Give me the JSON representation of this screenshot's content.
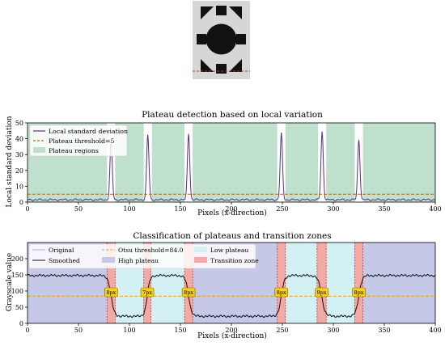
{
  "thumbnail": {
    "description_icon": "binary-pattern-icon"
  },
  "chart_data": [
    {
      "type": "line",
      "title": "Plateau detection based on local variation",
      "xlabel": "Pixels (x-direction)",
      "ylabel": "Local standard deviation",
      "xlim": [
        0,
        400
      ],
      "ylim": [
        0,
        50
      ],
      "xticks": [
        "0",
        "50",
        "100",
        "150",
        "200",
        "250",
        "300",
        "350",
        "400"
      ],
      "yticks": [
        "0",
        "10",
        "20",
        "30",
        "40",
        "50"
      ],
      "legend": {
        "position": "top-left",
        "items": [
          "Local standard deviation",
          "Plateau threshold=5",
          "Plateau regions"
        ]
      },
      "threshold": 5,
      "peaks": [
        {
          "x": 82,
          "y": 37
        },
        {
          "x": 118,
          "y": 41
        },
        {
          "x": 158,
          "y": 42
        },
        {
          "x": 249,
          "y": 42
        },
        {
          "x": 289,
          "y": 43
        },
        {
          "x": 325,
          "y": 38
        }
      ],
      "baseline": 1.5,
      "plateau_regions": [
        [
          0,
          78
        ],
        [
          86,
          114
        ],
        [
          122,
          154
        ],
        [
          162,
          245
        ],
        [
          253,
          285
        ],
        [
          293,
          321
        ],
        [
          329,
          400
        ]
      ],
      "colors": {
        "line": "#5b2c83",
        "threshold": "#b5651d",
        "plateau": "#bfe0cd"
      }
    },
    {
      "type": "line",
      "title": "Classification of plateaus and transition zones",
      "xlabel": "Pixels (x-direction)",
      "ylabel": "Grayscale value",
      "xlim": [
        0,
        400
      ],
      "ylim": [
        0,
        250
      ],
      "xticks": [
        "0",
        "50",
        "100",
        "150",
        "200",
        "250",
        "300",
        "350",
        "400"
      ],
      "yticks": [
        "0",
        "50",
        "100",
        "150",
        "200"
      ],
      "legend": {
        "position": "top",
        "items": [
          "Original",
          "Smoothed",
          "Otsu threshold=84.0",
          "High plateau",
          "Low plateau",
          "Transition zone"
        ]
      },
      "otsu_threshold": 84.0,
      "high_level": 148,
      "low_level": 22,
      "transitions": [
        {
          "start": 78,
          "end": 86,
          "label": "8px"
        },
        {
          "start": 114,
          "end": 121,
          "label": "7px"
        },
        {
          "start": 154,
          "end": 162,
          "label": "8px"
        },
        {
          "start": 245,
          "end": 253,
          "label": "8px"
        },
        {
          "start": 284,
          "end": 293,
          "label": "9px"
        },
        {
          "start": 321,
          "end": 329,
          "label": "8px"
        }
      ],
      "high_regions": [
        [
          0,
          78
        ],
        [
          162,
          245
        ],
        [
          329,
          400
        ]
      ],
      "low_regions": [
        [
          86,
          114
        ],
        [
          121,
          154
        ],
        [
          253,
          284
        ],
        [
          293,
          321
        ]
      ],
      "colors": {
        "high": "#c5c8e6",
        "low": "#d3f1f4",
        "transition": "#f3aaa5",
        "threshold": "#e3a21a",
        "label_box": "#f5d020"
      }
    }
  ]
}
